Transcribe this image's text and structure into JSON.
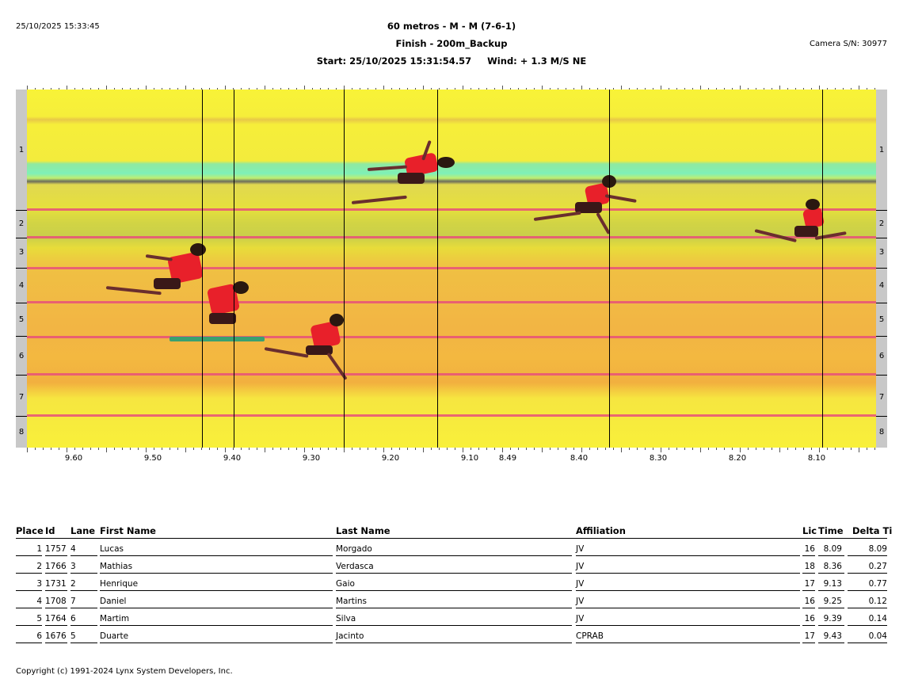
{
  "header": {
    "datetime": "25/10/2025 15:33:45",
    "title": "60 metros - M - M (7-6-1)",
    "subtitle": "Finish - 200m_Backup",
    "start_line": "Start: 25/10/2025 15:31:54.57     Wind: + 1.3 M/S NE",
    "camera": "Camera S/N: 30977"
  },
  "lanes": [
    "1",
    "2",
    "3",
    "4",
    "5",
    "6",
    "7",
    "8"
  ],
  "time_axis": [
    "9.60",
    "9.50",
    "9.40",
    "9.30",
    "9.20",
    "9.10",
    "8.49",
    "8.40",
    "8.30",
    "8.20",
    "8.10"
  ],
  "columns": {
    "place": "Place",
    "id": "Id",
    "lane": "Lane",
    "first": "First Name",
    "last": "Last Name",
    "affiliation": "Affiliation",
    "lic": "Lic",
    "time": "Time",
    "delta": "Delta Ti"
  },
  "results": [
    {
      "place": "1",
      "id": "1757",
      "lane": "4",
      "first": "Lucas",
      "last": "Morgado",
      "affiliation": "JV",
      "lic": "16",
      "time": "8.09",
      "delta": "8.09"
    },
    {
      "place": "2",
      "id": "1766",
      "lane": "3",
      "first": "Mathias",
      "last": "Verdasca",
      "affiliation": "JV",
      "lic": "18",
      "time": "8.36",
      "delta": "0.27"
    },
    {
      "place": "3",
      "id": "1731",
      "lane": "2",
      "first": "Henrique",
      "last": "Gaio",
      "affiliation": "JV",
      "lic": "17",
      "time": "9.13",
      "delta": "0.77"
    },
    {
      "place": "4",
      "id": "1708",
      "lane": "7",
      "first": "Daniel",
      "last": "Martins",
      "affiliation": "JV",
      "lic": "16",
      "time": "9.25",
      "delta": "0.12"
    },
    {
      "place": "5",
      "id": "1764",
      "lane": "6",
      "first": "Martim",
      "last": "Silva",
      "affiliation": "JV",
      "lic": "16",
      "time": "9.39",
      "delta": "0.14"
    },
    {
      "place": "6",
      "id": "1676",
      "lane": "5",
      "first": "Duarte",
      "last": "Jacinto",
      "affiliation": "CPRAB",
      "lic": "17",
      "time": "9.43",
      "delta": "0.04"
    }
  ],
  "footer": {
    "copyright": "Copyright (c) 1991-2024 Lynx System Developers, Inc."
  },
  "colors": {
    "photo_yellow": "#f8f338",
    "photo_orange": "#f2b544",
    "lane_stripe": "#e8507a",
    "jersey_red": "#e8202a"
  }
}
